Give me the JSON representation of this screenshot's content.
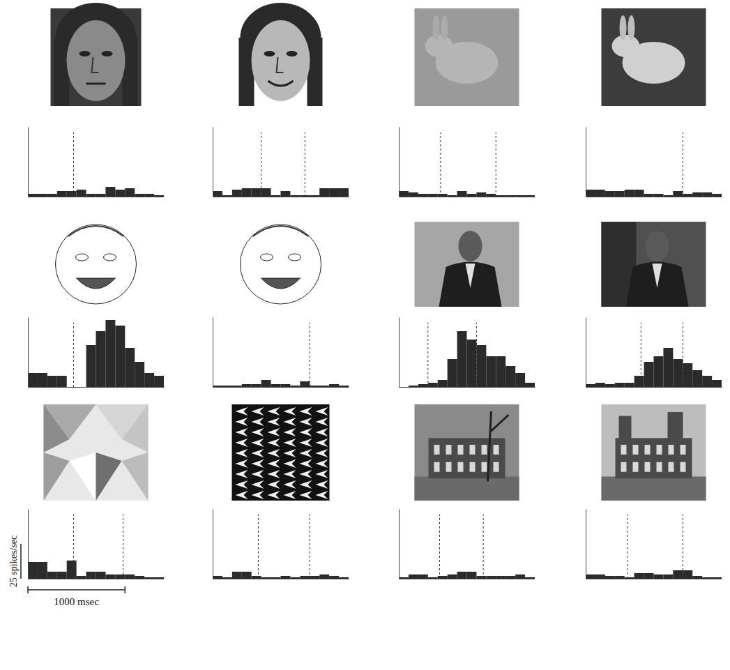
{
  "chart_data": [
    {
      "type": "histogram",
      "bins": [
        0,
        100,
        200,
        300,
        400,
        500,
        600,
        700,
        800,
        900,
        1000,
        1100,
        1200,
        1300,
        1400
      ],
      "counts": [
        2,
        2,
        2,
        4,
        4,
        5,
        2,
        2,
        7,
        5,
        6,
        2,
        2,
        1
      ],
      "xlim": [
        0,
        1400
      ],
      "ylim": [
        0,
        50
      ],
      "tick_labels": false,
      "events": [
        470
      ],
      "color": "#2b2b2b"
    },
    {
      "type": "histogram",
      "bins": [
        0,
        100,
        200,
        300,
        400,
        500,
        600,
        700,
        800,
        900,
        1000,
        1100,
        1200,
        1300,
        1400
      ],
      "counts": [
        4,
        1,
        5,
        6,
        6,
        6,
        1,
        4,
        1,
        1,
        1,
        6,
        6,
        6
      ],
      "xlim": [
        0,
        1400
      ],
      "ylim": [
        0,
        50
      ],
      "tick_labels": false,
      "events": [
        500,
        950
      ],
      "color": "#2b2b2b"
    },
    {
      "type": "histogram",
      "bins": [
        0,
        100,
        200,
        300,
        400,
        500,
        600,
        700,
        800,
        900,
        1000,
        1100,
        1200,
        1300,
        1400
      ],
      "counts": [
        4,
        3,
        2,
        2,
        2,
        1,
        4,
        2,
        3,
        2,
        1,
        1,
        1,
        1
      ],
      "xlim": [
        0,
        1400
      ],
      "ylim": [
        0,
        50
      ],
      "tick_labels": false,
      "events": [
        430,
        1000
      ],
      "color": "#2b2b2b"
    },
    {
      "type": "histogram",
      "bins": [
        0,
        100,
        200,
        300,
        400,
        500,
        600,
        700,
        800,
        900,
        1000,
        1100,
        1200,
        1300,
        1400
      ],
      "counts": [
        5,
        5,
        4,
        4,
        5,
        5,
        2,
        2,
        1,
        4,
        2,
        3,
        3,
        2
      ],
      "xlim": [
        0,
        1400
      ],
      "ylim": [
        0,
        50
      ],
      "tick_labels": false,
      "events": [
        1000
      ],
      "color": "#2b2b2b"
    },
    {
      "type": "histogram",
      "bins": [
        0,
        100,
        200,
        300,
        400,
        500,
        600,
        700,
        800,
        900,
        1000,
        1100,
        1200,
        1300,
        1400
      ],
      "counts": [
        10,
        10,
        8,
        8,
        0,
        0,
        30,
        40,
        48,
        44,
        28,
        18,
        10,
        8
      ],
      "xlim": [
        0,
        1400
      ],
      "ylim": [
        0,
        50
      ],
      "tick_labels": false,
      "events": [
        470
      ],
      "color": "#2b2b2b"
    },
    {
      "type": "histogram",
      "bins": [
        0,
        100,
        200,
        300,
        400,
        500,
        600,
        700,
        800,
        900,
        1000,
        1100,
        1200,
        1300,
        1400
      ],
      "counts": [
        1,
        1,
        1,
        2,
        2,
        5,
        2,
        2,
        1,
        4,
        1,
        1,
        2,
        1
      ],
      "xlim": [
        0,
        1400
      ],
      "ylim": [
        0,
        50
      ],
      "tick_labels": false,
      "events": [
        1000
      ],
      "color": "#2b2b2b"
    },
    {
      "type": "histogram",
      "bins": [
        0,
        100,
        200,
        300,
        400,
        500,
        600,
        700,
        800,
        900,
        1000,
        1100,
        1200,
        1300,
        1400
      ],
      "counts": [
        0,
        1,
        2,
        3,
        5,
        20,
        40,
        34,
        30,
        22,
        22,
        15,
        10,
        3
      ],
      "xlim": [
        0,
        1400
      ],
      "ylim": [
        0,
        50
      ],
      "tick_labels": false,
      "events": [
        300,
        800
      ],
      "color": "#2b2b2b"
    },
    {
      "type": "histogram",
      "bins": [
        0,
        100,
        200,
        300,
        400,
        500,
        600,
        700,
        800,
        900,
        1000,
        1100,
        1200,
        1300,
        1400
      ],
      "counts": [
        2,
        3,
        2,
        3,
        3,
        8,
        18,
        22,
        28,
        20,
        17,
        12,
        8,
        5
      ],
      "xlim": [
        0,
        1400
      ],
      "ylim": [
        0,
        50
      ],
      "tick_labels": false,
      "events": [
        570,
        1000
      ],
      "color": "#2b2b2b"
    },
    {
      "type": "histogram",
      "bins": [
        0,
        100,
        200,
        300,
        400,
        500,
        600,
        700,
        800,
        900,
        1000,
        1100,
        1200,
        1300,
        1400
      ],
      "counts": [
        12,
        12,
        5,
        5,
        13,
        2,
        5,
        5,
        3,
        3,
        3,
        2,
        1,
        1
      ],
      "xlim": [
        0,
        1400
      ],
      "ylim": [
        0,
        50
      ],
      "tick_labels": false,
      "events": [
        470,
        980
      ],
      "color": "#2b2b2b"
    },
    {
      "type": "histogram",
      "bins": [
        0,
        100,
        200,
        300,
        400,
        500,
        600,
        700,
        800,
        900,
        1000,
        1100,
        1200,
        1300,
        1400
      ],
      "counts": [
        2,
        1,
        5,
        5,
        2,
        1,
        1,
        2,
        1,
        2,
        2,
        3,
        2,
        1
      ],
      "xlim": [
        0,
        1400
      ],
      "ylim": [
        0,
        50
      ],
      "tick_labels": false,
      "events": [
        470,
        1000
      ],
      "color": "#2b2b2b"
    },
    {
      "type": "histogram",
      "bins": [
        0,
        100,
        200,
        300,
        400,
        500,
        600,
        700,
        800,
        900,
        1000,
        1100,
        1200,
        1300,
        1400
      ],
      "counts": [
        1,
        3,
        3,
        1,
        2,
        3,
        5,
        5,
        2,
        2,
        2,
        2,
        3,
        1
      ],
      "xlim": [
        0,
        1400
      ],
      "ylim": [
        0,
        50
      ],
      "tick_labels": false,
      "events": [
        420,
        870
      ],
      "color": "#2b2b2b"
    },
    {
      "type": "histogram",
      "bins": [
        0,
        100,
        200,
        300,
        400,
        500,
        600,
        700,
        800,
        900,
        1000,
        1100,
        1200,
        1300,
        1400
      ],
      "counts": [
        3,
        3,
        2,
        2,
        1,
        4,
        4,
        3,
        3,
        6,
        6,
        2,
        1,
        1
      ],
      "xlim": [
        0,
        1400
      ],
      "ylim": [
        0,
        50
      ],
      "tick_labels": false,
      "events": [
        430,
        1000
      ],
      "color": "#2b2b2b"
    }
  ],
  "scale_bar": {
    "y": 25,
    "y_label": "25 spikes/sec",
    "x": 1000,
    "x_label": "1000 msec"
  }
}
